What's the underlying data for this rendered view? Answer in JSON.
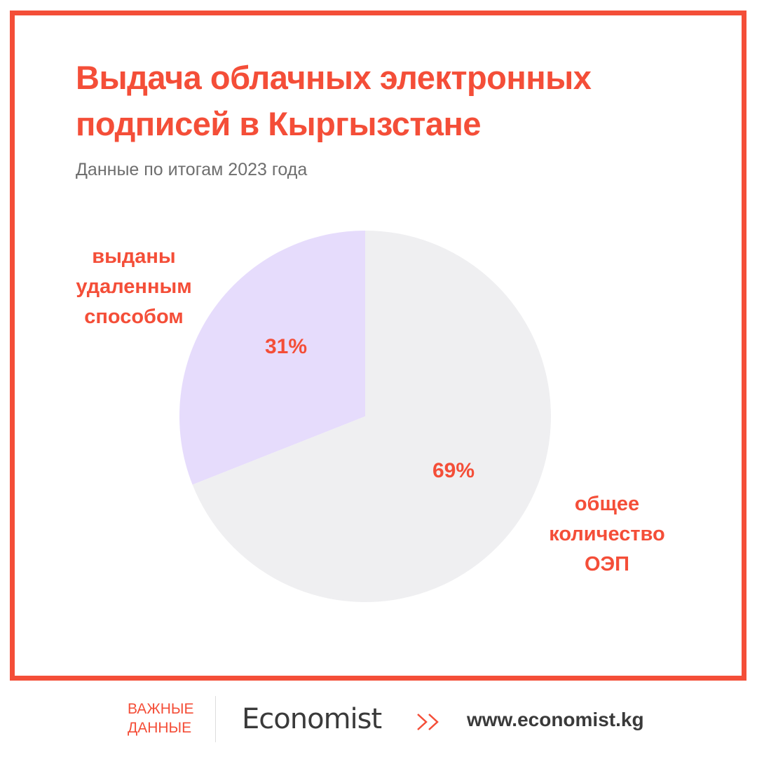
{
  "header": {
    "title_line1": "Выдача облачных электронных",
    "title_line2": "подписей в Кыргызстане",
    "subtitle": "Данные по итогам 2023 года"
  },
  "colors": {
    "accent": "#f44e38",
    "slice_remote": "#e6dcfc",
    "slice_total": "#efeff1",
    "subtitle": "#6e6e6e",
    "logo": "#3a3a3a"
  },
  "chart_data": {
    "type": "pie",
    "title": "Выдача облачных электронных подписей в Кыргызстане",
    "subtitle": "Данные по итогам 2023 года",
    "slices": [
      {
        "label_lines": [
          "выданы",
          "удаленным",
          "способом"
        ],
        "value": 31,
        "value_label": "31%",
        "color": "#e6dcfc"
      },
      {
        "label_lines": [
          "общее",
          "количество",
          "ОЭП"
        ],
        "value": 69,
        "value_label": "69%",
        "color": "#efeff1"
      }
    ],
    "start": "12 o'clock",
    "direction": "counterclockwise"
  },
  "footer": {
    "tag_line1": "ВАЖНЫЕ",
    "tag_line2": "ДАННЫЕ",
    "logo_text": "Economist",
    "chevron_icon": "double-chevron-right-icon",
    "url": "www.economist.kg"
  }
}
